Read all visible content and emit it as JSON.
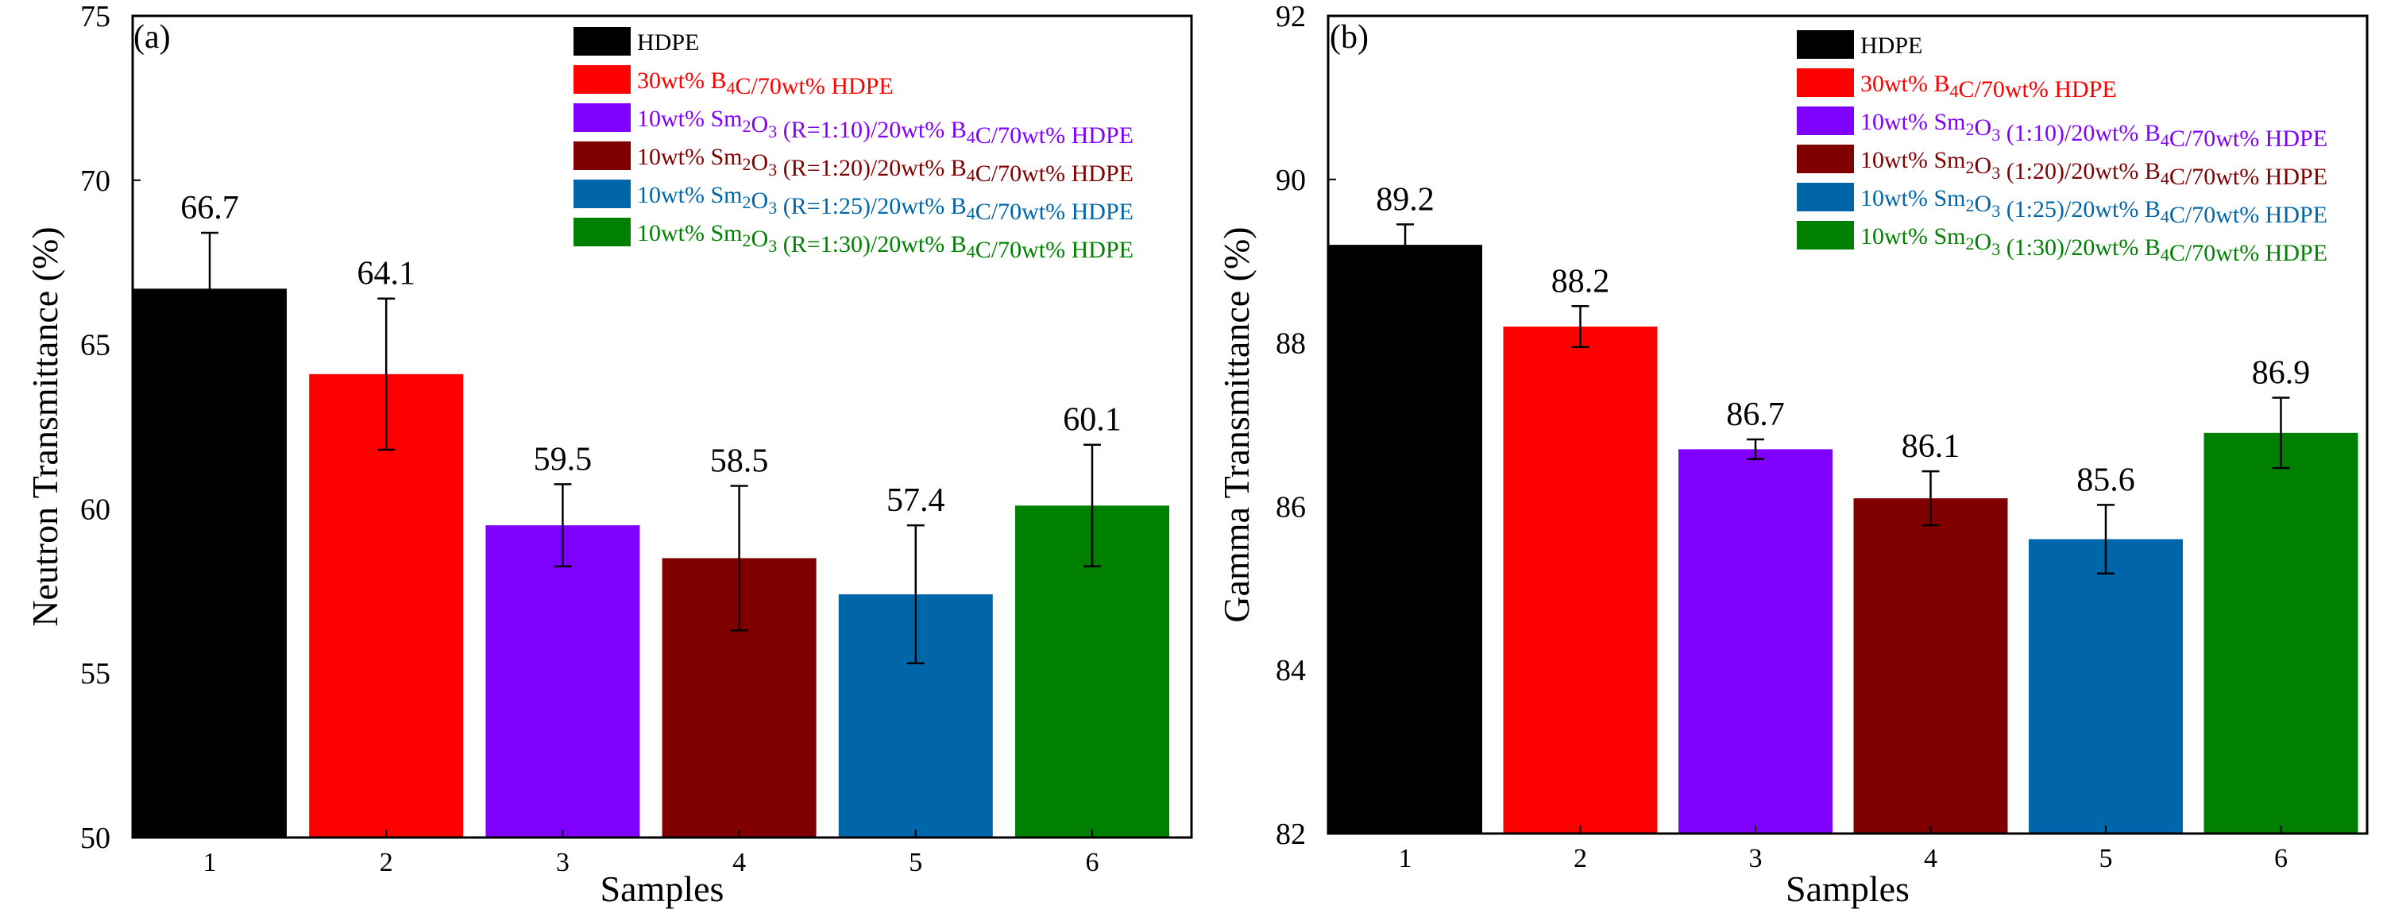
{
  "chart_data": [
    {
      "type": "bar",
      "panel_label": "(a)",
      "title": "",
      "xlabel": "Samples",
      "ylabel": "Neutron Transmittance (%)",
      "ylim": [
        50,
        75
      ],
      "yticks": [
        50,
        55,
        60,
        65,
        70,
        75
      ],
      "categories": [
        "1",
        "2",
        "3",
        "4",
        "5",
        "6"
      ],
      "values": [
        66.7,
        64.1,
        59.5,
        58.5,
        57.4,
        60.1
      ],
      "errors": [
        1.7,
        2.3,
        1.25,
        2.2,
        2.1,
        1.85
      ],
      "value_labels": [
        "66.7",
        "64.1",
        "59.5",
        "58.5",
        "57.4",
        "60.1"
      ],
      "colors": [
        "#000000",
        "#ff0000",
        "#8000ff",
        "#800000",
        "#0066aa",
        "#008000"
      ],
      "legend_position": "top-right",
      "legend": [
        {
          "color": "#000000",
          "parts": [
            {
              "t": "HDPE"
            }
          ]
        },
        {
          "color": "#ff0000",
          "parts": [
            {
              "t": "30wt% B"
            },
            {
              "t": "4",
              "sub": true
            },
            {
              "t": "C/70wt% HDPE"
            }
          ]
        },
        {
          "color": "#8000ff",
          "parts": [
            {
              "t": "10wt% Sm"
            },
            {
              "t": "2",
              "sub": true
            },
            {
              "t": "O"
            },
            {
              "t": "3",
              "sub": true
            },
            {
              "t": " (R=1:10)/20wt% B"
            },
            {
              "t": "4",
              "sub": true
            },
            {
              "t": "C/70wt% HDPE"
            }
          ]
        },
        {
          "color": "#800000",
          "parts": [
            {
              "t": "10wt% Sm"
            },
            {
              "t": "2",
              "sub": true
            },
            {
              "t": "O"
            },
            {
              "t": "3",
              "sub": true
            },
            {
              "t": " (R=1:20)/20wt% B"
            },
            {
              "t": "4",
              "sub": true
            },
            {
              "t": "C/70wt% HDPE"
            }
          ]
        },
        {
          "color": "#0066aa",
          "parts": [
            {
              "t": "10wt% Sm"
            },
            {
              "t": "2",
              "sub": true
            },
            {
              "t": "O"
            },
            {
              "t": "3",
              "sub": true
            },
            {
              "t": " (R=1:25)/20wt% B"
            },
            {
              "t": "4",
              "sub": true
            },
            {
              "t": "C/70wt% HDPE"
            }
          ]
        },
        {
          "color": "#008000",
          "parts": [
            {
              "t": "10wt% Sm"
            },
            {
              "t": "2",
              "sub": true
            },
            {
              "t": "O"
            },
            {
              "t": "3",
              "sub": true
            },
            {
              "t": " (R=1:30)/20wt% B"
            },
            {
              "t": "4",
              "sub": true
            },
            {
              "t": "C/70wt% HDPE"
            }
          ]
        }
      ]
    },
    {
      "type": "bar",
      "panel_label": "(b)",
      "title": "",
      "xlabel": "Samples",
      "ylabel": "Gamma Transmittance (%)",
      "ylim": [
        82,
        92
      ],
      "yticks": [
        82,
        84,
        86,
        88,
        90,
        92
      ],
      "categories": [
        "1",
        "2",
        "3",
        "4",
        "5",
        "6"
      ],
      "values": [
        89.2,
        88.2,
        86.7,
        86.1,
        85.6,
        86.9
      ],
      "errors": [
        0.25,
        0.25,
        0.12,
        0.33,
        0.42,
        0.43
      ],
      "value_labels": [
        "89.2",
        "88.2",
        "86.7",
        "86.1",
        "85.6",
        "86.9"
      ],
      "colors": [
        "#000000",
        "#ff0000",
        "#8000ff",
        "#800000",
        "#0066aa",
        "#008000"
      ],
      "legend_position": "top-right",
      "legend": [
        {
          "color": "#000000",
          "parts": [
            {
              "t": "HDPE"
            }
          ]
        },
        {
          "color": "#ff0000",
          "parts": [
            {
              "t": "30wt% B"
            },
            {
              "t": "4",
              "sub": true
            },
            {
              "t": "C/70wt% HDPE"
            }
          ]
        },
        {
          "color": "#8000ff",
          "parts": [
            {
              "t": "10wt% Sm"
            },
            {
              "t": "2",
              "sub": true
            },
            {
              "t": "O"
            },
            {
              "t": "3",
              "sub": true
            },
            {
              "t": " (1:10)/20wt% B"
            },
            {
              "t": "4",
              "sub": true
            },
            {
              "t": "C/70wt% HDPE"
            }
          ]
        },
        {
          "color": "#800000",
          "parts": [
            {
              "t": "10wt% Sm"
            },
            {
              "t": "2",
              "sub": true
            },
            {
              "t": "O"
            },
            {
              "t": "3",
              "sub": true
            },
            {
              "t": " (1:20)/20wt% B"
            },
            {
              "t": "4",
              "sub": true
            },
            {
              "t": "C/70wt% HDPE"
            }
          ]
        },
        {
          "color": "#0066aa",
          "parts": [
            {
              "t": "10wt% Sm"
            },
            {
              "t": "2",
              "sub": true
            },
            {
              "t": "O"
            },
            {
              "t": "3",
              "sub": true
            },
            {
              "t": " (1:25)/20wt% B"
            },
            {
              "t": "4",
              "sub": true
            },
            {
              "t": "C/70wt% HDPE"
            }
          ]
        },
        {
          "color": "#008000",
          "parts": [
            {
              "t": "10wt% Sm"
            },
            {
              "t": "2",
              "sub": true
            },
            {
              "t": "O"
            },
            {
              "t": "3",
              "sub": true
            },
            {
              "t": " (1:30)/20wt% B"
            },
            {
              "t": "4",
              "sub": true
            },
            {
              "t": "C/70wt% HDPE"
            }
          ]
        }
      ]
    }
  ]
}
